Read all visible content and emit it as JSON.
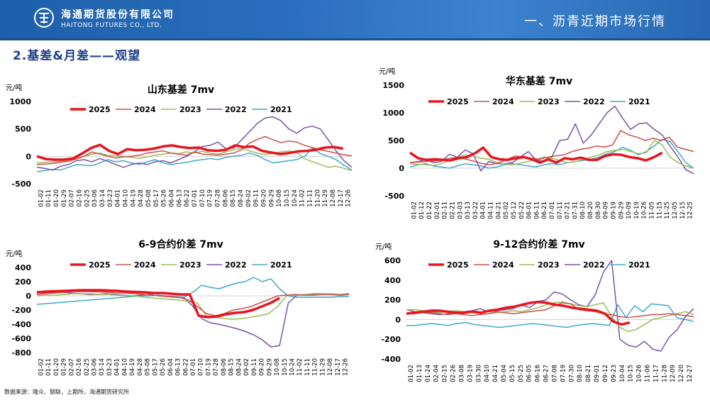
{
  "header": {
    "logo_cn": "海通期货股份有限公司",
    "logo_en": "HAITONG FUTURES CO., LTD.",
    "title": "一、沥青近期市场行情"
  },
  "section_title": "2.基差&月差——观望",
  "source": "数据来源：隆众、钢联、上期所、海通期货研究所",
  "colors": {
    "header": "#2a6fbf",
    "title": "#1f3f8a",
    "2025": "#e8141e",
    "2024": "#c9504b",
    "2023": "#9bbb59",
    "2022": "#7a52a8",
    "2021": "#40a8c8"
  },
  "chart_data": [
    {
      "id": "sd",
      "type": "line",
      "title": "山东基差 7mv",
      "unit": "元/吨",
      "ylim": [
        -500,
        1000
      ],
      "yticks": [
        -500,
        0,
        500,
        1000
      ],
      "xticks": [
        "01-02",
        "01-11",
        "01-20",
        "01-29",
        "02-07",
        "02-16",
        "02-25",
        "03-06",
        "03-14",
        "03-23",
        "04-01",
        "04-10",
        "04-19",
        "04-28",
        "05-08",
        "05-17",
        "05-26",
        "06-04",
        "06-13",
        "06-22",
        "07-01",
        "07-10",
        "07-19",
        "07-28",
        "08-06",
        "08-15",
        "08-24",
        "09-02",
        "09-11",
        "09-20",
        "09-29",
        "10-08",
        "10-15",
        "10-24",
        "11-02",
        "11-11",
        "11-20",
        "11-29",
        "12-08",
        "12-17",
        "12-26"
      ],
      "legend": [
        "2025",
        "2024",
        "2023",
        "2022",
        "2021"
      ],
      "series": [
        {
          "name": "2025",
          "width": 3.5,
          "values": [
            0,
            -50,
            -60,
            -60,
            -40,
            50,
            150,
            210,
            100,
            40,
            130,
            110,
            120,
            140,
            180,
            200,
            170,
            150,
            160,
            110,
            100,
            120,
            200,
            170,
            180,
            100,
            70,
            40,
            60,
            90,
            100,
            120,
            160,
            170,
            140
          ]
        },
        {
          "name": "2024",
          "width": 1.5,
          "values": [
            -150,
            -140,
            -130,
            -110,
            -90,
            -50,
            0,
            80,
            40,
            0,
            -30,
            -10,
            0,
            20,
            60,
            80,
            100,
            60,
            40,
            20,
            80,
            40,
            30,
            20,
            40,
            60,
            120,
            240,
            310,
            360,
            300,
            250,
            280,
            260,
            200,
            160,
            120,
            90,
            60,
            30,
            10
          ]
        },
        {
          "name": "2023",
          "width": 1.5,
          "values": [
            -120,
            -110,
            -100,
            -90,
            -70,
            -30,
            0,
            40,
            60,
            20,
            10,
            0,
            -20,
            -40,
            -10,
            20,
            40,
            60,
            50,
            80,
            60,
            90,
            60,
            40,
            80,
            120,
            150,
            100,
            60,
            30,
            60,
            80,
            100,
            70,
            -40,
            -100,
            -150,
            -200,
            -180,
            -220,
            -260
          ]
        },
        {
          "name": "2022",
          "width": 1.5,
          "values": [
            -200,
            -220,
            -250,
            -180,
            -150,
            -80,
            -60,
            -100,
            -40,
            -90,
            -150,
            -200,
            -150,
            -120,
            -150,
            -100,
            -80,
            -120,
            -60,
            0,
            80,
            180,
            200,
            260,
            140,
            150,
            300,
            450,
            600,
            700,
            720,
            650,
            500,
            420,
            520,
            550,
            500,
            300,
            100,
            -80,
            -200
          ]
        },
        {
          "name": "2021",
          "width": 1.5,
          "values": [
            -280,
            -260,
            -240,
            -250,
            -200,
            -150,
            -160,
            -170,
            -120,
            -60,
            -100,
            -80,
            -120,
            -150,
            -100,
            -60,
            -120,
            -150,
            -130,
            -110,
            -80,
            -60,
            -40,
            -60,
            -20,
            0,
            20,
            60,
            20,
            -60,
            -120,
            -100,
            -80,
            -60,
            0,
            150,
            50,
            0,
            -60,
            -160,
            -250
          ]
        }
      ]
    },
    {
      "id": "hd",
      "type": "line",
      "title": "华东基差 7mv",
      "unit": "元/吨",
      "ylim": [
        -500,
        1500
      ],
      "yticks": [
        -500,
        0,
        500,
        1000,
        1500
      ],
      "xticks": [
        "01-02",
        "01-12",
        "01-22",
        "02-01",
        "02-11",
        "02-21",
        "03-03",
        "03-13",
        "03-22",
        "04-01",
        "04-11",
        "04-21",
        "05-02",
        "05-12",
        "05-22",
        "06-01",
        "06-11",
        "06-21",
        "07-01",
        "07-11",
        "07-21",
        "07-31",
        "08-10",
        "08-20",
        "08-30",
        "09-09",
        "09-19",
        "09-29",
        "10-09",
        "10-19",
        "10-26",
        "11-05",
        "11-15",
        "11-25",
        "12-05",
        "12-15",
        "12-25"
      ],
      "legend": [
        "2025",
        "2024",
        "2023",
        "2022",
        "2021"
      ],
      "series": [
        {
          "name": "2025",
          "width": 3.5,
          "values": [
            280,
            180,
            150,
            160,
            150,
            140,
            180,
            200,
            270,
            370,
            200,
            160,
            150,
            180,
            200,
            160,
            100,
            160,
            100,
            180,
            160,
            190,
            150,
            150,
            220,
            250,
            240,
            200,
            180,
            140,
            200,
            280
          ]
        },
        {
          "name": "2024",
          "width": 1.5,
          "values": [
            100,
            110,
            120,
            130,
            150,
            180,
            200,
            160,
            120,
            80,
            60,
            100,
            160,
            220,
            200,
            180,
            160,
            200,
            220,
            240,
            300,
            340,
            360,
            400,
            380,
            420,
            680,
            600,
            560,
            500,
            540,
            500,
            560,
            380,
            340,
            300
          ]
        },
        {
          "name": "2023",
          "width": 1.5,
          "values": [
            80,
            70,
            60,
            50,
            80,
            140,
            200,
            240,
            220,
            180,
            160,
            100,
            80,
            60,
            90,
            120,
            160,
            200,
            180,
            140,
            100,
            120,
            160,
            200,
            240,
            300,
            320,
            340,
            300,
            260,
            280,
            500,
            420,
            200,
            100,
            40,
            0
          ]
        },
        {
          "name": "2022",
          "width": 1.5,
          "values": [
            100,
            120,
            150,
            100,
            120,
            250,
            200,
            330,
            260,
            -50,
            120,
            80,
            80,
            100,
            200,
            300,
            150,
            120,
            200,
            500,
            520,
            800,
            450,
            600,
            800,
            1000,
            1120,
            900,
            700,
            800,
            820,
            700,
            600,
            400,
            200,
            -30,
            -100
          ]
        },
        {
          "name": "2021",
          "width": 1.5,
          "values": [
            20,
            60,
            80,
            40,
            20,
            0,
            40,
            80,
            60,
            40,
            0,
            20,
            60,
            80,
            60,
            40,
            20,
            60,
            80,
            60,
            100,
            120,
            140,
            160,
            200,
            260,
            300,
            380,
            320,
            240,
            300,
            400,
            520,
            480,
            300,
            100,
            0
          ]
        }
      ]
    },
    {
      "id": "s69",
      "type": "line",
      "title": "6-9合约价差 7mv",
      "unit": "元/吨",
      "ylim": [
        -800,
        400
      ],
      "yticks": [
        -800,
        -600,
        -400,
        -200,
        0,
        200,
        400
      ],
      "xticks": [
        "01-02",
        "01-11",
        "01-20",
        "01-29",
        "02-07",
        "02-16",
        "02-25",
        "03-06",
        "03-14",
        "03-23",
        "04-01",
        "04-10",
        "04-19",
        "04-28",
        "05-08",
        "05-17",
        "05-26",
        "06-04",
        "06-13",
        "06-22",
        "07-01",
        "07-10",
        "07-19",
        "07-28",
        "08-06",
        "08-15",
        "08-24",
        "09-02",
        "09-11",
        "09-20",
        "09-29",
        "10-08",
        "10-15",
        "10-24",
        "11-02",
        "11-11",
        "11-20",
        "11-29",
        "12-08",
        "12-17",
        "12-26"
      ],
      "legend": [
        "2025",
        "2024",
        "2023",
        "2022",
        "2021"
      ],
      "series": [
        {
          "name": "2025",
          "width": 3.5,
          "values": [
            50,
            60,
            65,
            70,
            75,
            80,
            80,
            80,
            75,
            70,
            60,
            55,
            50,
            40,
            40,
            30,
            20,
            20,
            -280,
            -300,
            -290,
            -260,
            -240,
            -230,
            -200,
            -150,
            -100,
            -30
          ]
        },
        {
          "name": "2024",
          "width": 1.5,
          "values": [
            20,
            30,
            40,
            50,
            60,
            60,
            60,
            55,
            50,
            40,
            40,
            30,
            20,
            10,
            0,
            -10,
            -20,
            -60,
            -150,
            -250,
            -280,
            -250,
            -200,
            -180,
            -150,
            -100,
            -50,
            0,
            10,
            20,
            10,
            10,
            20,
            20,
            10,
            20
          ]
        },
        {
          "name": "2023",
          "width": 1.5,
          "values": [
            0,
            10,
            10,
            20,
            30,
            30,
            30,
            20,
            20,
            10,
            0,
            0,
            -20,
            -30,
            -40,
            -50,
            -60,
            -80,
            -100,
            -280,
            -300,
            -320,
            -330,
            -320,
            -300,
            -280,
            -250,
            -150,
            0,
            10,
            20,
            20,
            30,
            30,
            20,
            20
          ]
        },
        {
          "name": "2022",
          "width": 1.5,
          "values": [
            40,
            45,
            50,
            50,
            40,
            30,
            20,
            20,
            30,
            20,
            10,
            0,
            10,
            20,
            0,
            -10,
            -20,
            -30,
            -150,
            -320,
            -380,
            -400,
            -430,
            -460,
            -500,
            -550,
            -620,
            -720,
            -700,
            -100,
            10,
            20,
            30,
            30,
            20,
            20,
            30
          ]
        },
        {
          "name": "2021",
          "width": 1.5,
          "values": [
            -120,
            -110,
            -100,
            -90,
            -80,
            -70,
            -60,
            -50,
            -40,
            -30,
            -20,
            -10,
            0,
            0,
            10,
            0,
            -10,
            -20,
            50,
            150,
            120,
            100,
            140,
            180,
            200,
            260,
            200,
            240,
            100,
            0,
            -20,
            -20,
            -20,
            -20,
            -20,
            -10,
            -10
          ]
        }
      ]
    },
    {
      "id": "s912",
      "type": "line",
      "title": "9-12合约价差 7mv",
      "unit": "元/吨",
      "ylim": [
        -400,
        600
      ],
      "yticks": [
        -400,
        -200,
        0,
        200,
        400,
        600
      ],
      "xticks": [
        "01-02",
        "01-13",
        "01-24",
        "02-04",
        "02-15",
        "02-26",
        "03-08",
        "03-19",
        "03-30",
        "04-10",
        "04-21",
        "05-04",
        "05-15",
        "05-25",
        "06-05",
        "06-16",
        "06-27",
        "07-08",
        "07-19",
        "07-30",
        "08-10",
        "08-21",
        "09-01",
        "09-12",
        "09-23",
        "10-04",
        "10-15",
        "10-26",
        "11-06",
        "11-17",
        "11-28",
        "12-09",
        "12-20",
        "12-27"
      ],
      "legend": [
        "2025",
        "2024",
        "2023",
        "2022",
        "2021"
      ],
      "series": [
        {
          "name": "2025",
          "width": 3.5,
          "values": [
            60,
            70,
            80,
            90,
            90,
            80,
            70,
            70,
            80,
            70,
            90,
            100,
            120,
            130,
            150,
            170,
            180,
            170,
            150,
            140,
            120,
            110,
            100,
            90,
            60,
            -20,
            -50,
            -30
          ]
        },
        {
          "name": "2024",
          "width": 1.5,
          "values": [
            60,
            60,
            70,
            70,
            60,
            50,
            60,
            50,
            40,
            50,
            60,
            80,
            70,
            60,
            70,
            80,
            90,
            100,
            140,
            170,
            160,
            100,
            90,
            80,
            60,
            50,
            30,
            20,
            30,
            40,
            50,
            50,
            60,
            50,
            40,
            30
          ]
        },
        {
          "name": "2023",
          "width": 1.5,
          "values": [
            100,
            100,
            90,
            80,
            70,
            80,
            90,
            80,
            70,
            60,
            60,
            70,
            80,
            90,
            80,
            100,
            120,
            150,
            170,
            180,
            160,
            140,
            130,
            150,
            170,
            30,
            -80,
            -120,
            -100,
            -50,
            0,
            20,
            40,
            60,
            80,
            50
          ]
        },
        {
          "name": "2022",
          "width": 1.5,
          "values": [
            100,
            80,
            70,
            60,
            50,
            60,
            70,
            80,
            90,
            110,
            80,
            90,
            100,
            110,
            150,
            120,
            180,
            200,
            280,
            260,
            200,
            150,
            130,
            250,
            480,
            600,
            -200,
            -260,
            -280,
            -220,
            -300,
            -320,
            -180,
            -100,
            30,
            110
          ]
        },
        {
          "name": "2021",
          "width": 1.5,
          "values": [
            -60,
            -60,
            -50,
            -40,
            -50,
            -60,
            -40,
            -30,
            -50,
            -60,
            -70,
            -80,
            -70,
            -60,
            -50,
            -40,
            -50,
            -60,
            -70,
            -80,
            -60,
            -50,
            -40,
            -50,
            -60,
            150,
            20,
            140,
            80,
            160,
            150,
            140,
            20,
            0,
            -20
          ]
        }
      ]
    }
  ]
}
